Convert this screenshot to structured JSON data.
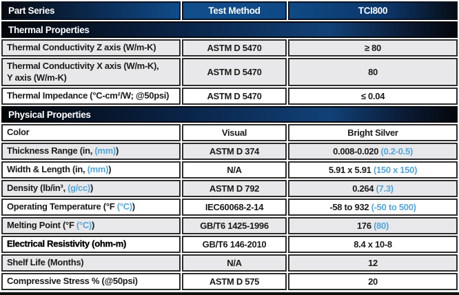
{
  "colors": {
    "blue_text": "#55a5d6",
    "header_blue": "#11508f",
    "shaded_row": "#e8e8ea",
    "border": "#2b2b2b",
    "band_dark": "#05070b"
  },
  "table": {
    "columns": [
      "Part Series",
      "Test Method",
      "TCI800"
    ],
    "sections": [
      {
        "title": "Thermal Properties",
        "rows": [
          {
            "label": [
              [
                "Thermal Conductivity Z axis (W/m-K)",
                "d"
              ]
            ],
            "method": "ASTM D 5470",
            "value": [
              [
                "≥ 80",
                "d"
              ]
            ],
            "shaded": true,
            "tall": false,
            "strong": false
          },
          {
            "label": [
              [
                "Thermal Conductivity X axis (W/m-K),\nY axis (W/m-K)",
                "d"
              ]
            ],
            "method": "ASTM D 5470",
            "value": [
              [
                "80",
                "d"
              ]
            ],
            "shaded": true,
            "tall": true,
            "strong": false
          },
          {
            "label": [
              [
                "Thermal Impedance (°C-cm²/W; @50psi)",
                "d"
              ]
            ],
            "method": "ASTM D 5470",
            "value": [
              [
                "≤ 0.04",
                "d"
              ]
            ],
            "shaded": false,
            "tall": false,
            "strong": false
          }
        ]
      },
      {
        "title": "Physical Properties",
        "rows": [
          {
            "label": [
              [
                "Color",
                "d"
              ]
            ],
            "method": "Visual",
            "value": [
              [
                "Bright Silver",
                "d"
              ]
            ],
            "shaded": false,
            "tall": false,
            "strong": false
          },
          {
            "label": [
              [
                "Thickness Range (in, ",
                "d"
              ],
              [
                "(mm)",
                "b"
              ],
              [
                ")",
                "d"
              ]
            ],
            "method": "ASTM D 374",
            "value": [
              [
                "0.008-0.020 ",
                "d"
              ],
              [
                "(0.2-0.5)",
                "b"
              ]
            ],
            "shaded": true,
            "tall": false,
            "strong": false
          },
          {
            "label": [
              [
                "Width & Length (in, ",
                "d"
              ],
              [
                "(mm)",
                "b"
              ],
              [
                ")",
                "d"
              ]
            ],
            "method": "N/A",
            "value": [
              [
                "5.91 x 5.91 ",
                "d"
              ],
              [
                "(150 x 150)",
                "b"
              ]
            ],
            "shaded": false,
            "tall": false,
            "strong": false
          },
          {
            "label": [
              [
                "Density (lb/in³, ",
                "d"
              ],
              [
                "(g/cc)",
                "b"
              ],
              [
                ")",
                "d"
              ]
            ],
            "method": "ASTM D 792",
            "value": [
              [
                "0.264 ",
                "d"
              ],
              [
                "(7.3)",
                "b"
              ]
            ],
            "shaded": true,
            "tall": false,
            "strong": false
          },
          {
            "label": [
              [
                "Operating Temperature (°F ",
                "d"
              ],
              [
                "(°C)",
                "b"
              ],
              [
                ")",
                "d"
              ]
            ],
            "method": "IEC60068-2-14",
            "value": [
              [
                "-58 to 932 ",
                "d"
              ],
              [
                "(-50 to 500)",
                "b"
              ]
            ],
            "shaded": false,
            "tall": false,
            "strong": false
          },
          {
            "label": [
              [
                "Melting Point (°F ",
                "d"
              ],
              [
                "(°C)",
                "b"
              ],
              [
                ")",
                "d"
              ]
            ],
            "method": "GB/T6 1425-1996",
            "value": [
              [
                "176 ",
                "d"
              ],
              [
                "(80)",
                "b"
              ]
            ],
            "shaded": true,
            "tall": false,
            "strong": false
          },
          {
            "label": [
              [
                "Electrical Resistivity (ohm-m)",
                "d"
              ]
            ],
            "method": "GB/T6 146-2010",
            "value": [
              [
                "8.4 x 10-8",
                "d"
              ]
            ],
            "shaded": false,
            "tall": false,
            "strong": true
          },
          {
            "label": [
              [
                "Shelf Life (Months)",
                "d"
              ]
            ],
            "method": "N/A",
            "value": [
              [
                "12",
                "d"
              ]
            ],
            "shaded": true,
            "tall": false,
            "strong": false
          },
          {
            "label": [
              [
                "Compressive Stress % (@50psi)",
                "d"
              ]
            ],
            "method": "ASTM D 575",
            "value": [
              [
                "20",
                "d"
              ]
            ],
            "shaded": false,
            "tall": false,
            "strong": false
          }
        ]
      }
    ]
  }
}
